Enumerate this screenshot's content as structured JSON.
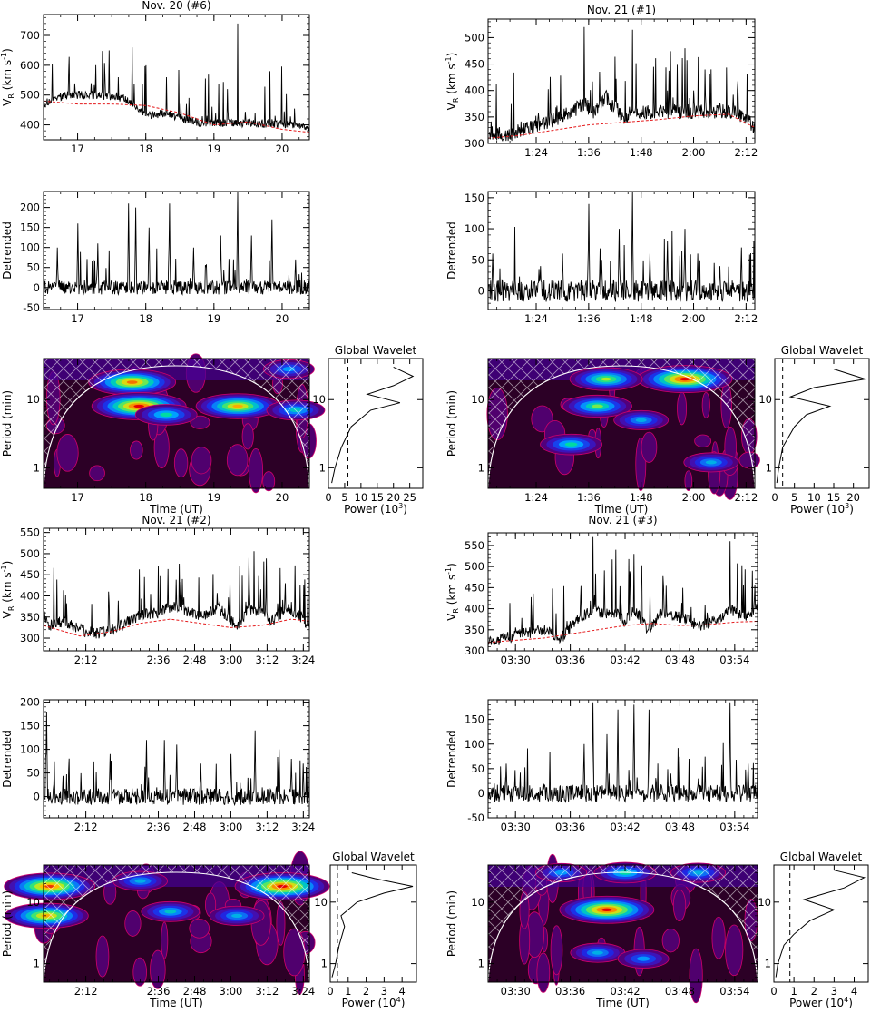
{
  "chart_data": [
    {
      "id": "A",
      "title": "Nov. 20 (#6)",
      "x_ticks": [
        "17",
        "18",
        "19",
        "20"
      ],
      "x_range_hours": [
        16.5,
        20.4
      ],
      "velocity": {
        "type": "line",
        "ylabel": "V_R (km s^-1)",
        "ylim": [
          350,
          770
        ],
        "yticks": [
          400,
          500,
          600,
          700
        ],
        "series": [
          {
            "color": "#000000",
            "x": [
              16.5,
              16.8,
              17.2,
              17.6,
              17.8,
              18.0,
              18.3,
              18.6,
              18.9,
              19.2,
              19.35,
              19.6,
              19.9,
              20.2,
              20.4
            ],
            "values": [
              470,
              500,
              540,
              560,
              660,
              600,
              560,
              470,
              430,
              520,
              740,
              440,
              430,
              400,
              390
            ]
          },
          {
            "color": "#e41a1c",
            "x": [
              16.5,
              17.0,
              17.5,
              18.0,
              18.5,
              19.0,
              19.5,
              20.0,
              20.4
            ],
            "values": [
              480,
              470,
              470,
              465,
              440,
              400,
              410,
              385,
              375
            ]
          }
        ]
      },
      "detrended": {
        "type": "line",
        "ylabel": "Detrended",
        "ylim": [
          -55,
          240
        ],
        "yticks": [
          -50,
          0,
          50,
          100,
          150,
          200
        ],
        "peaks_x": [
          16.7,
          17.0,
          17.3,
          17.75,
          17.85,
          18.05,
          18.35,
          18.7,
          19.1,
          19.35,
          19.55,
          19.85,
          20.2
        ],
        "peaks_y": [
          100,
          160,
          110,
          210,
          200,
          150,
          210,
          100,
          130,
          240,
          130,
          170,
          70
        ]
      },
      "wavelet": {
        "type": "heatmap",
        "ylabel": "Period (min)",
        "xlabel": "Time (UT)",
        "yticks": [
          "1",
          "10"
        ],
        "ylim_log": [
          0.5,
          40
        ],
        "blobs": [
          {
            "x": 17.8,
            "p": 18,
            "level": 0.9
          },
          {
            "x": 17.9,
            "p": 8,
            "level": 1.0
          },
          {
            "x": 19.35,
            "p": 8,
            "level": 0.85
          },
          {
            "x": 18.3,
            "p": 6,
            "level": 0.55
          },
          {
            "x": 20.2,
            "p": 7,
            "level": 0.5
          },
          {
            "x": 20.1,
            "p": 28,
            "level": 0.4
          }
        ]
      },
      "global": {
        "title": "Global Wavelet",
        "xlabel": "Power (10^3)",
        "xlim": [
          0,
          29
        ],
        "xticks": [
          0,
          5,
          10,
          15,
          20,
          25
        ],
        "sig_level": 6,
        "curve": [
          {
            "p": 0.6,
            "v": 1
          },
          {
            "p": 1,
            "v": 2
          },
          {
            "p": 2,
            "v": 4
          },
          {
            "p": 4,
            "v": 7
          },
          {
            "p": 7,
            "v": 13
          },
          {
            "p": 9,
            "v": 22
          },
          {
            "p": 12,
            "v": 12
          },
          {
            "p": 16,
            "v": 20
          },
          {
            "p": 22,
            "v": 26
          },
          {
            "p": 30,
            "v": 20
          }
        ]
      }
    },
    {
      "id": "B",
      "title": "Nov. 21 (#1)",
      "x_ticks": [
        "1:24",
        "1:36",
        "1:48",
        "2:00",
        "2:12"
      ],
      "x_range_minutes": [
        73,
        134
      ],
      "velocity": {
        "type": "line",
        "ylabel": "V_R (km s^-1)",
        "ylim": [
          300,
          535
        ],
        "yticks": [
          300,
          350,
          400,
          450,
          500
        ],
        "series": [
          {
            "color": "#000000",
            "x": [
              73,
              78,
              82,
              86,
              90,
              95,
              97,
              100,
              104,
              106,
              110,
              114,
              118,
              120,
              124,
              127,
              130,
              134
            ],
            "values": [
              320,
              315,
              330,
              340,
              350,
              520,
              360,
              400,
              350,
              515,
              360,
              400,
              480,
              400,
              440,
              360,
              400,
              330
            ]
          },
          {
            "color": "#e41a1c",
            "x": [
              73,
              80,
              88,
              96,
              104,
              112,
              120,
              128,
              134
            ],
            "values": [
              310,
              315,
              325,
              335,
              340,
              345,
              352,
              355,
              330
            ]
          }
        ]
      },
      "detrended": {
        "type": "line",
        "ylabel": "Detrended",
        "ylim": [
          -30,
          160
        ],
        "yticks": [
          0,
          50,
          100,
          150
        ],
        "peaks_x": [
          74,
          85,
          90,
          96,
          99,
          103,
          106,
          110,
          114,
          118,
          121,
          126,
          131
        ],
        "peaks_y": [
          60,
          40,
          60,
          140,
          50,
          100,
          160,
          60,
          80,
          100,
          60,
          40,
          70
        ]
      },
      "wavelet": {
        "type": "heatmap",
        "ylabel": "Period (min)",
        "xlabel": "Time (UT)",
        "yticks": [
          "1",
          "10"
        ],
        "ylim_log": [
          0.5,
          40
        ],
        "blobs": [
          {
            "x": 118,
            "p": 20,
            "level": 1.0
          },
          {
            "x": 100,
            "p": 20,
            "level": 0.7
          },
          {
            "x": 98,
            "p": 8,
            "level": 0.65
          },
          {
            "x": 92,
            "p": 2.2,
            "level": 0.55
          },
          {
            "x": 108,
            "p": 5,
            "level": 0.45
          },
          {
            "x": 124,
            "p": 1.2,
            "level": 0.45
          }
        ]
      },
      "global": {
        "title": "Global Wavelet",
        "xlabel": "Power (10^3)",
        "xlim": [
          0,
          24
        ],
        "xticks": [
          0,
          5,
          10,
          15,
          20
        ],
        "sig_level": 2,
        "curve": [
          {
            "p": 0.6,
            "v": 0.5
          },
          {
            "p": 1,
            "v": 1
          },
          {
            "p": 2,
            "v": 2
          },
          {
            "p": 4,
            "v": 5
          },
          {
            "p": 6,
            "v": 8
          },
          {
            "p": 8,
            "v": 14
          },
          {
            "p": 11,
            "v": 4
          },
          {
            "p": 15,
            "v": 10
          },
          {
            "p": 20,
            "v": 23
          },
          {
            "p": 28,
            "v": 15
          }
        ]
      }
    },
    {
      "id": "C",
      "title": "Nov. 21 (#2)",
      "x_ticks": [
        "2:12",
        "2:36",
        "2:48",
        "3:00",
        "3:12",
        "3:24"
      ],
      "x_tick_minutes": [
        132,
        156,
        168,
        180,
        192,
        204
      ],
      "x_range_minutes": [
        118,
        206
      ],
      "velocity": {
        "type": "line",
        "ylabel": "V_R (km s^-1)",
        "ylim": [
          270,
          560
        ],
        "yticks": [
          300,
          350,
          400,
          450,
          500,
          550
        ],
        "series": [
          {
            "color": "#000000",
            "x": [
              118,
              120,
              124,
              130,
              136,
              144,
              150,
              156,
              160,
              164,
              170,
              176,
              182,
              186,
              190,
              194,
              198,
              202,
              206
            ],
            "values": [
              500,
              330,
              340,
              320,
              310,
              330,
              360,
              470,
              380,
              440,
              350,
              380,
              330,
              490,
              360,
              340,
              430,
              360,
              330
            ]
          },
          {
            "color": "#e41a1c",
            "x": [
              118,
              130,
              140,
              150,
              160,
              170,
              180,
              190,
              200,
              206
            ],
            "values": [
              330,
              305,
              315,
              335,
              345,
              335,
              325,
              330,
              345,
              340
            ]
          }
        ]
      },
      "detrended": {
        "type": "line",
        "ylabel": "Detrended",
        "ylim": [
          -45,
          205
        ],
        "yticks": [
          0,
          50,
          100,
          150,
          200
        ],
        "peaks_x": [
          119,
          140,
          152,
          158,
          162,
          170,
          180,
          188,
          196,
          200,
          204
        ],
        "peaks_y": [
          180,
          90,
          120,
          120,
          110,
          70,
          90,
          140,
          100,
          80,
          70
        ]
      },
      "wavelet": {
        "type": "heatmap",
        "ylabel": "Period (min)",
        "xlabel": "Time (UT)",
        "yticks": [
          "1",
          "10"
        ],
        "ylim_log": [
          0.5,
          40
        ],
        "blobs": [
          {
            "x": 120,
            "p": 18,
            "level": 0.95
          },
          {
            "x": 119,
            "p": 6,
            "level": 0.85
          },
          {
            "x": 197,
            "p": 18,
            "level": 1.0
          },
          {
            "x": 160,
            "p": 7,
            "level": 0.5
          },
          {
            "x": 182,
            "p": 6,
            "level": 0.45
          },
          {
            "x": 150,
            "p": 22,
            "level": 0.45
          }
        ]
      },
      "global": {
        "title": "Global Wavelet",
        "xlabel": "Power (10^4)",
        "xlim": [
          0,
          4.8
        ],
        "xticks": [
          0,
          1,
          2,
          3,
          4
        ],
        "sig_level": 0.4,
        "curve": [
          {
            "p": 0.6,
            "v": 0.1
          },
          {
            "p": 1,
            "v": 0.3
          },
          {
            "p": 2,
            "v": 0.5
          },
          {
            "p": 4,
            "v": 0.8
          },
          {
            "p": 6,
            "v": 0.6
          },
          {
            "p": 10,
            "v": 1.5
          },
          {
            "p": 14,
            "v": 3.0
          },
          {
            "p": 18,
            "v": 4.6
          },
          {
            "p": 24,
            "v": 2.5
          },
          {
            "p": 30,
            "v": 1.2
          }
        ]
      }
    },
    {
      "id": "D",
      "title": "Nov. 21 (#3)",
      "x_ticks": [
        "03:30",
        "03:36",
        "03:42",
        "03:48",
        "03:54"
      ],
      "x_tick_minutes": [
        210,
        216,
        222,
        228,
        234
      ],
      "x_range_minutes": [
        207,
        236.5
      ],
      "velocity": {
        "type": "line",
        "ylabel": "V_R (km s^-1)",
        "ylim": [
          300,
          580
        ],
        "yticks": [
          300,
          350,
          400,
          450,
          500,
          550
        ],
        "series": [
          {
            "color": "#000000",
            "x": [
              207,
              209,
              211,
              213,
              215,
              217,
              218.5,
              219.5,
              221,
              222,
              223,
              224.5,
              226,
              228,
              230,
              232,
              233.5,
              235,
              236.5
            ],
            "values": [
              320,
              330,
              340,
              350,
              330,
              380,
              570,
              400,
              540,
              370,
              530,
              350,
              390,
              380,
              360,
              370,
              560,
              380,
              420
            ]
          },
          {
            "color": "#e41a1c",
            "x": [
              207,
              210,
              213,
              216,
              219,
              222,
              225,
              228,
              231,
              234,
              236.5
            ],
            "values": [
              320,
              325,
              330,
              340,
              350,
              360,
              365,
              360,
              362,
              368,
              370
            ]
          }
        ]
      },
      "detrended": {
        "type": "line",
        "ylabel": "Detrended",
        "ylim": [
          -50,
          190
        ],
        "yticks": [
          -50,
          0,
          50,
          100,
          150
        ],
        "peaks_x": [
          209,
          213,
          217.5,
          218.5,
          220,
          221.2,
          223,
          224.6,
          227,
          230,
          233.5,
          235.5
        ],
        "peaks_y": [
          60,
          20,
          100,
          185,
          120,
          170,
          180,
          170,
          40,
          30,
          185,
          60
        ]
      },
      "wavelet": {
        "type": "heatmap",
        "ylabel": "Period (min)",
        "xlabel": "Time (UT)",
        "yticks": [
          "1",
          "10"
        ],
        "ylim_log": [
          0.5,
          40
        ],
        "blobs": [
          {
            "x": 220,
            "p": 7.5,
            "level": 1.0
          },
          {
            "x": 222,
            "p": 30,
            "level": 0.55
          },
          {
            "x": 215,
            "p": 30,
            "level": 0.4
          },
          {
            "x": 230,
            "p": 30,
            "level": 0.45
          },
          {
            "x": 219,
            "p": 1.5,
            "level": 0.45
          },
          {
            "x": 224,
            "p": 1.2,
            "level": 0.4
          }
        ]
      },
      "global": {
        "title": "Global Wavelet",
        "xlabel": "Power (10^4)",
        "xlim": [
          0,
          4.7
        ],
        "xticks": [
          0,
          1,
          2,
          3,
          4
        ],
        "sig_level": 0.8,
        "curve": [
          {
            "p": 0.6,
            "v": 0.1
          },
          {
            "p": 1,
            "v": 0.2
          },
          {
            "p": 2,
            "v": 0.5
          },
          {
            "p": 3,
            "v": 1.0
          },
          {
            "p": 5,
            "v": 1.8
          },
          {
            "p": 7.5,
            "v": 3.0
          },
          {
            "p": 11,
            "v": 1.5
          },
          {
            "p": 17,
            "v": 3.5
          },
          {
            "p": 25,
            "v": 4.5
          },
          {
            "p": 33,
            "v": 3.0
          }
        ]
      }
    }
  ]
}
